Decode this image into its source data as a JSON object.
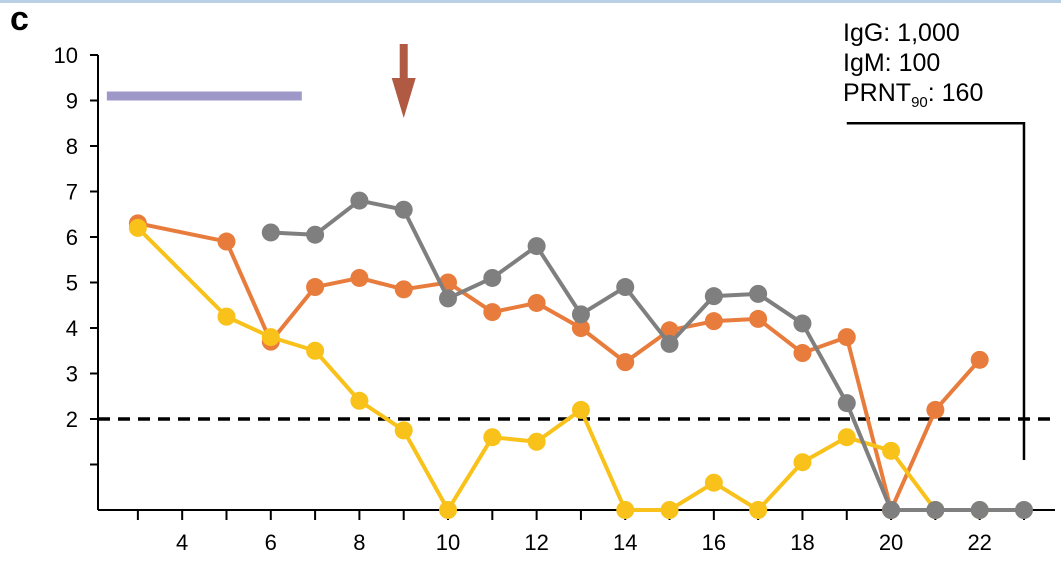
{
  "panel_label": "c",
  "annotation": {
    "igg": "IgG: 1,000",
    "igm": "IgM: 100",
    "prnt_prefix": "PRNT",
    "prnt_sub": "90",
    "prnt_suffix": ": 160"
  },
  "colors": {
    "orange": "#e87c3c",
    "yellow": "#f8c21a",
    "gray": "#7f7f7f",
    "purple_bar": "#9d98c8",
    "arrow": "#b05a43",
    "threshold": "#000000"
  },
  "chart_data": {
    "type": "line",
    "title": "",
    "xlabel": "",
    "ylabel": "",
    "xlim": [
      2.1,
      23.7
    ],
    "ylim": [
      0,
      10
    ],
    "x_ticks": [
      4,
      6,
      8,
      10,
      12,
      14,
      16,
      18,
      20,
      22
    ],
    "y_ticks": [
      2,
      3,
      4,
      5,
      6,
      7,
      8,
      9,
      10
    ],
    "threshold_y": 2,
    "arrow_x": 9,
    "bar": {
      "x_start": 2.3,
      "x_end": 6.7,
      "y": 9.1
    },
    "bracket": {
      "x_start": 19.0,
      "x_end": 23.0,
      "y_top": 8.5,
      "y_bottom": 1.1
    },
    "series": [
      {
        "color_key": "orange",
        "x": [
          3,
          5,
          6,
          7,
          8,
          9,
          10,
          11,
          12,
          13,
          14,
          15,
          16,
          17,
          18,
          19,
          20,
          21,
          22
        ],
        "y": [
          6.3,
          5.9,
          3.7,
          4.9,
          5.1,
          4.85,
          5.0,
          4.35,
          4.55,
          4.0,
          3.25,
          3.95,
          4.15,
          4.2,
          3.45,
          3.8,
          0,
          2.2,
          3.3
        ]
      },
      {
        "color_key": "yellow",
        "x": [
          3,
          5,
          6,
          7,
          8,
          9,
          10,
          11,
          12,
          13,
          14,
          15,
          16,
          17,
          18,
          19,
          20,
          21,
          22
        ],
        "y": [
          6.2,
          4.25,
          3.8,
          3.5,
          2.4,
          1.75,
          0,
          1.6,
          1.5,
          2.2,
          0,
          0,
          0.6,
          0,
          1.05,
          1.6,
          1.3,
          0,
          0
        ]
      },
      {
        "color_key": "gray",
        "x": [
          6,
          7,
          8,
          9,
          10,
          11,
          12,
          13,
          14,
          15,
          16,
          17,
          18,
          19,
          20,
          21,
          22,
          23
        ],
        "y": [
          6.1,
          6.05,
          6.8,
          6.6,
          4.65,
          5.1,
          5.8,
          4.3,
          4.9,
          3.65,
          4.7,
          4.75,
          4.1,
          2.35,
          0,
          0,
          0,
          0
        ]
      }
    ]
  }
}
